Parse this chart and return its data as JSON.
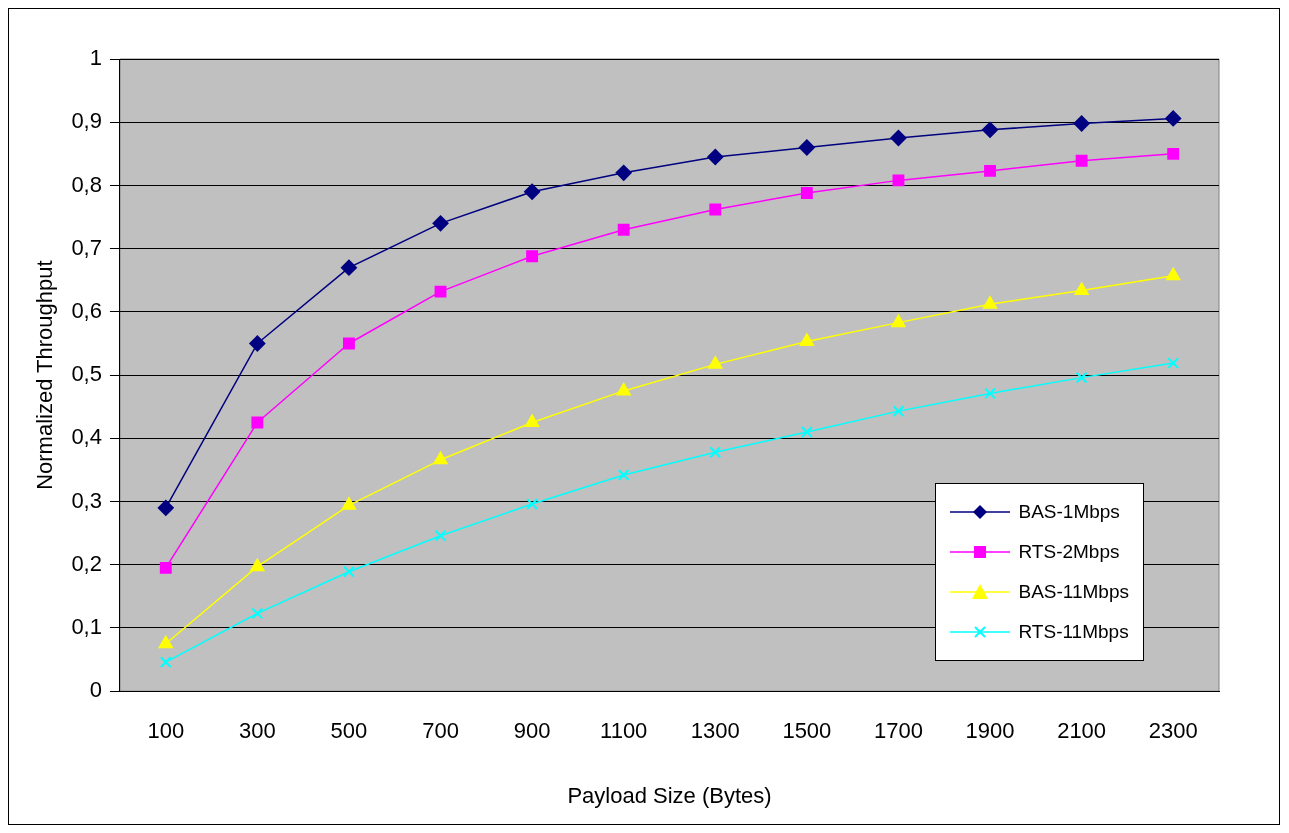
{
  "chart_data": {
    "type": "line",
    "xlabel": "Payload Size (Bytes)",
    "ylabel": "Normalized Throughput",
    "categories": [
      "100",
      "300",
      "500",
      "700",
      "900",
      "1100",
      "1300",
      "1500",
      "1700",
      "1900",
      "2100",
      "2300"
    ],
    "series": [
      {
        "name": "BAS-1Mbps",
        "color": "#000080",
        "marker": "diamond",
        "values": [
          0.29,
          0.55,
          0.67,
          0.74,
          0.79,
          0.82,
          0.845,
          0.86,
          0.875,
          0.888,
          0.898,
          0.906
        ]
      },
      {
        "name": "RTS-2Mbps",
        "color": "#ff00ff",
        "marker": "square",
        "values": [
          0.195,
          0.425,
          0.55,
          0.632,
          0.688,
          0.73,
          0.762,
          0.788,
          0.808,
          0.823,
          0.839,
          0.85
        ]
      },
      {
        "name": "BAS-11Mbps",
        "color": "#ffff00",
        "marker": "triangle",
        "values": [
          0.075,
          0.197,
          0.294,
          0.366,
          0.425,
          0.475,
          0.517,
          0.553,
          0.583,
          0.612,
          0.634,
          0.657
        ]
      },
      {
        "name": "RTS-11Mbps",
        "color": "#00ffff",
        "marker": "cross",
        "values": [
          0.046,
          0.123,
          0.189,
          0.246,
          0.296,
          0.342,
          0.378,
          0.41,
          0.443,
          0.471,
          0.496,
          0.519
        ]
      }
    ],
    "ylim": [
      0,
      1
    ],
    "yticks": [
      0,
      {
        "value": 0.1,
        "label": "0,1"
      },
      {
        "value": 0.2,
        "label": "0,2"
      },
      {
        "value": 0.3,
        "label": "0,3"
      },
      {
        "value": 0.4,
        "label": "0,4"
      },
      {
        "value": 0.5,
        "label": "0,5"
      },
      {
        "value": 0.6,
        "label": "0,6"
      },
      {
        "value": 0.7,
        "label": "0,7"
      },
      {
        "value": 0.8,
        "label": "0,8"
      },
      {
        "value": 0.9,
        "label": "0,9"
      },
      1
    ],
    "grid": "y",
    "legend": "bottom right",
    "line_style": "solid"
  }
}
